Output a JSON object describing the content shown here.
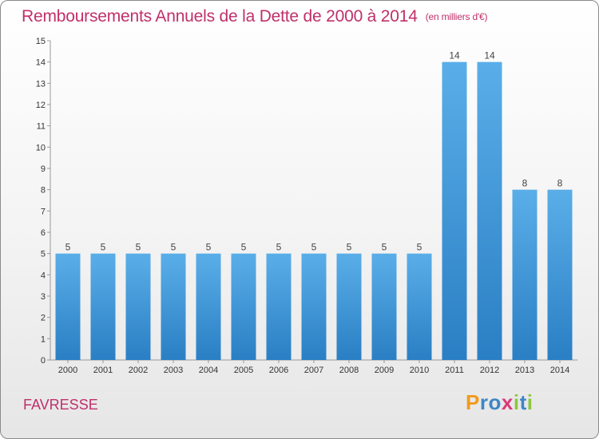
{
  "header": {
    "title": "Remboursements Annuels de la Dette de 2000 à 2014",
    "unit": "(en milliers d'€)"
  },
  "commune": "FAVRESSE",
  "logo": {
    "text": "Proxiti",
    "parts": [
      "P",
      "r",
      "o",
      "x",
      "i",
      "t",
      "i"
    ]
  },
  "colors": {
    "title": "#c0306a",
    "bar_top": "#5aaee8",
    "bar_bottom": "#2a7fc4"
  },
  "chart_data": {
    "type": "bar",
    "title": "Remboursements Annuels de la Dette de 2000 à 2014",
    "subtitle": "(en milliers d'€)",
    "xlabel": "",
    "ylabel": "",
    "categories": [
      "2000",
      "2001",
      "2002",
      "2003",
      "2004",
      "2005",
      "2006",
      "2007",
      "2008",
      "2009",
      "2010",
      "2011",
      "2012",
      "2013",
      "2014"
    ],
    "values": [
      5,
      5,
      5,
      5,
      5,
      5,
      5,
      5,
      5,
      5,
      5,
      14,
      14,
      8,
      8
    ],
    "data_labels": [
      "5",
      "5",
      "5",
      "5",
      "5",
      "5",
      "5",
      "5",
      "5",
      "5",
      "5",
      "14",
      "14",
      "8",
      "8"
    ],
    "ylim": [
      0,
      15
    ],
    "yticks": [
      0,
      1,
      2,
      3,
      4,
      5,
      6,
      7,
      8,
      9,
      10,
      11,
      12,
      13,
      14,
      15
    ],
    "grid": false,
    "legend": "none"
  }
}
